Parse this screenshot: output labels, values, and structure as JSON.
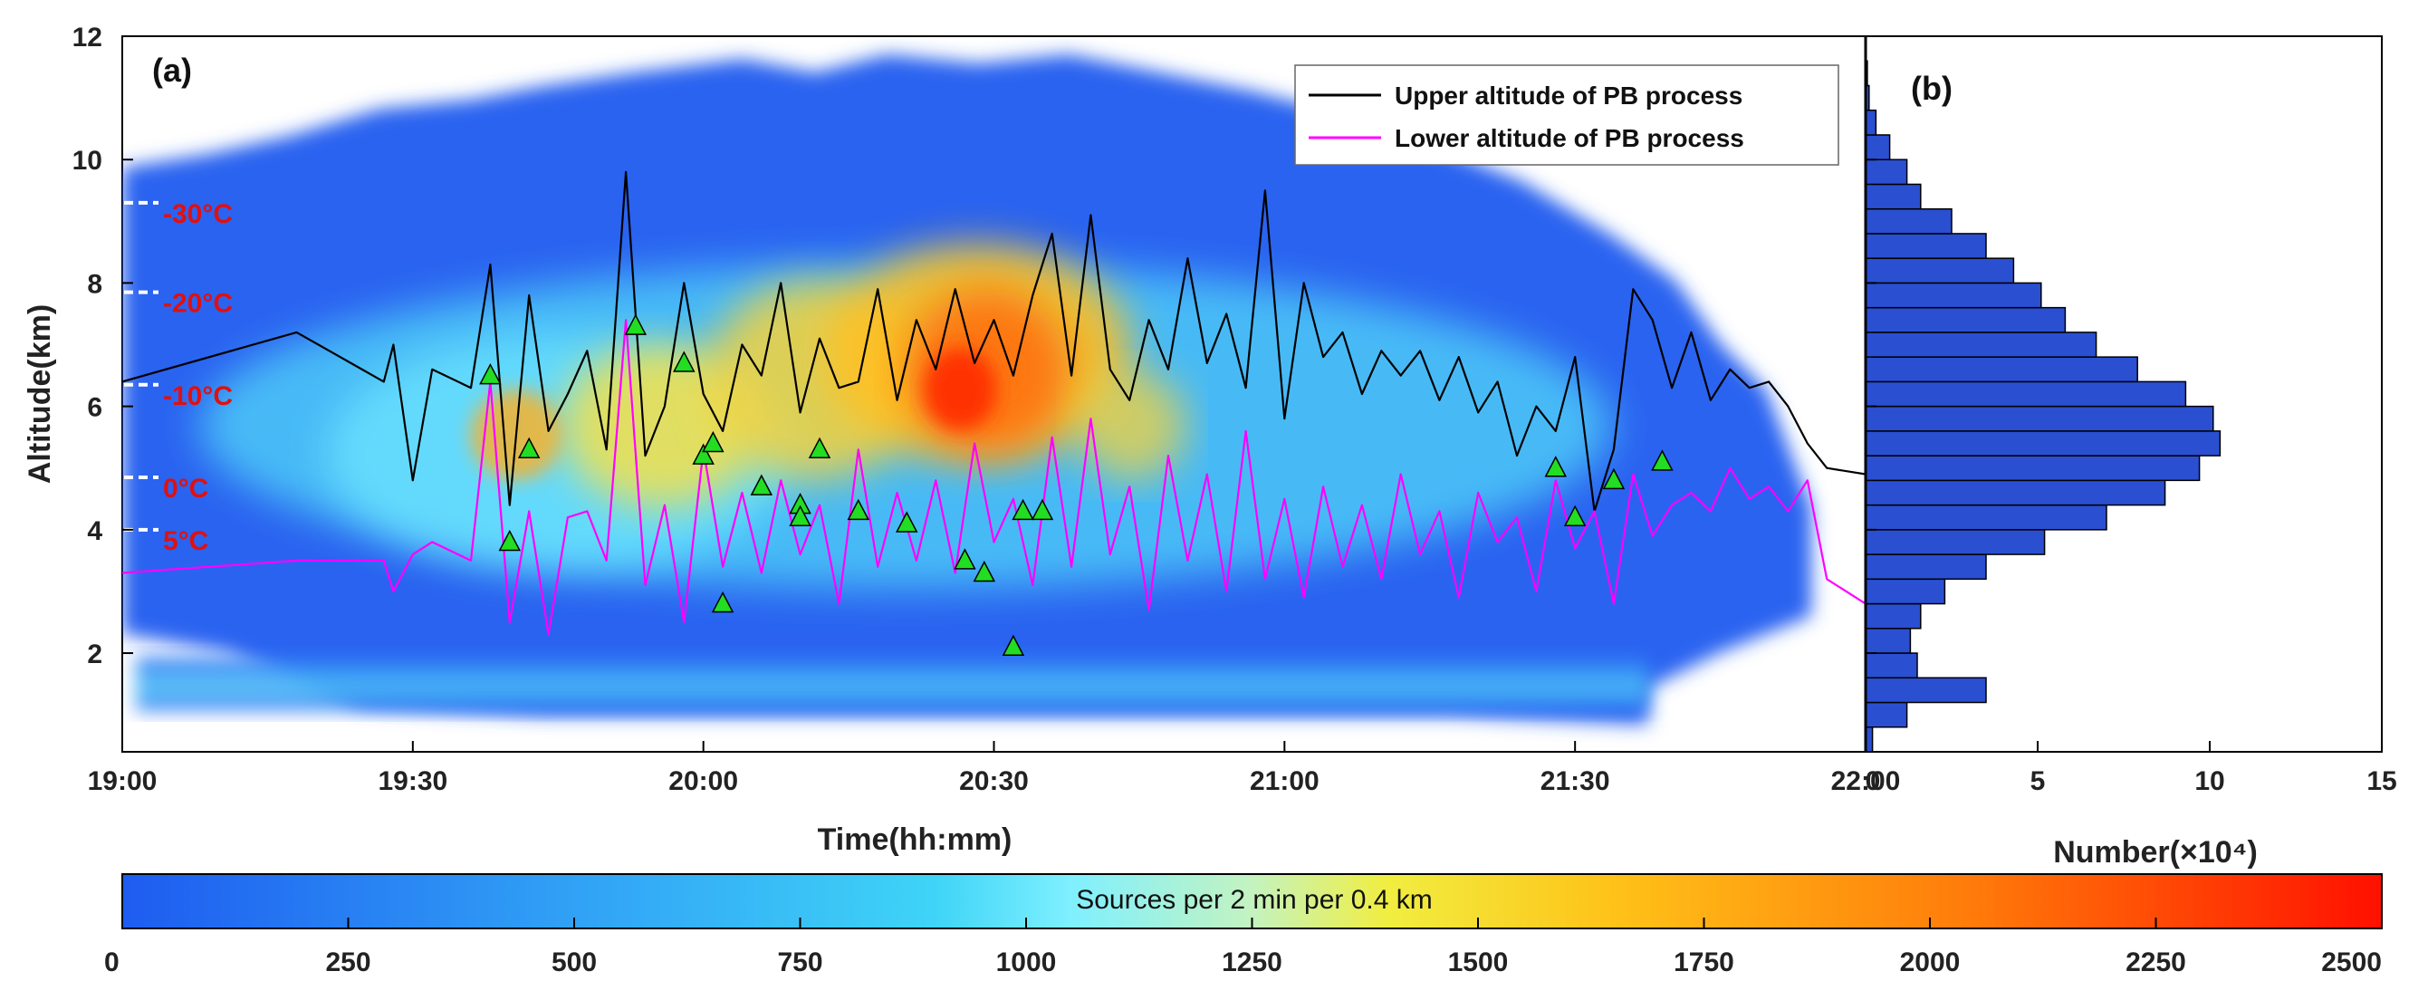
{
  "chart_data": [
    {
      "type": "heatmap",
      "panel_label": "(a)",
      "xlabel": "Time(hh:mm)",
      "ylabel": "Altitude(km)",
      "x_ticks": [
        "19:00",
        "19:30",
        "20:00",
        "20:30",
        "21:00",
        "21:30",
        "22:00"
      ],
      "x_ticks_minutes": [
        0,
        30,
        60,
        90,
        120,
        150,
        180
      ],
      "xlim_minutes": [
        0,
        180
      ],
      "y_ticks": [
        2,
        4,
        6,
        8,
        10,
        12
      ],
      "ylim": [
        0.4,
        12
      ],
      "temperature_levels": [
        {
          "label": "-30°C",
          "altitude": 9.3
        },
        {
          "label": "-20°C",
          "altitude": 7.85
        },
        {
          "label": "-10°C",
          "altitude": 6.35
        },
        {
          "label": "0°C",
          "altitude": 4.85
        },
        {
          "label": "5°C",
          "altitude": 4.0
        }
      ],
      "legend": {
        "position": "top-right"
      },
      "series": [
        {
          "name": "Upper altitude of PB process",
          "color": "#000000",
          "x": [
            0,
            18,
            27,
            28,
            30,
            32,
            36,
            38,
            40,
            42,
            44,
            46,
            48,
            50,
            52,
            54,
            56,
            58,
            60,
            62,
            64,
            66,
            68,
            70,
            72,
            74,
            76,
            78,
            80,
            82,
            84,
            86,
            88,
            90,
            92,
            94,
            96,
            98,
            100,
            102,
            104,
            106,
            108,
            110,
            112,
            114,
            116,
            118,
            120,
            122,
            124,
            126,
            128,
            130,
            132,
            134,
            136,
            138,
            140,
            142,
            144,
            146,
            148,
            150,
            152,
            154,
            156,
            158,
            160,
            162,
            164,
            166,
            168,
            170,
            172,
            174,
            176,
            180
          ],
          "y": [
            6.4,
            7.2,
            6.4,
            7.0,
            4.8,
            6.6,
            6.3,
            8.3,
            4.4,
            7.8,
            5.6,
            6.2,
            6.9,
            5.3,
            9.8,
            5.2,
            6.0,
            8.0,
            6.2,
            5.6,
            7.0,
            6.5,
            8.0,
            5.9,
            7.1,
            6.3,
            6.4,
            7.9,
            6.1,
            7.4,
            6.6,
            7.9,
            6.7,
            7.4,
            6.5,
            7.8,
            8.8,
            6.5,
            9.1,
            6.6,
            6.1,
            7.4,
            6.6,
            8.4,
            6.7,
            7.5,
            6.3,
            9.5,
            5.8,
            8.0,
            6.8,
            7.2,
            6.2,
            6.9,
            6.5,
            6.9,
            6.1,
            6.8,
            5.9,
            6.4,
            5.2,
            6.0,
            5.6,
            6.8,
            4.3,
            5.3,
            7.9,
            7.4,
            6.3,
            7.2,
            6.1,
            6.6,
            6.3,
            6.4,
            6.0,
            5.4,
            5.0,
            4.9
          ]
        },
        {
          "name": "Lower altitude of PB process",
          "color": "#ff00ff",
          "x": [
            0,
            18,
            27,
            28,
            30,
            32,
            36,
            38,
            40,
            42,
            44,
            46,
            48,
            50,
            52,
            54,
            56,
            58,
            60,
            62,
            64,
            66,
            68,
            70,
            72,
            74,
            76,
            78,
            80,
            82,
            84,
            86,
            88,
            90,
            92,
            94,
            96,
            98,
            100,
            102,
            104,
            106,
            108,
            110,
            112,
            114,
            116,
            118,
            120,
            122,
            124,
            126,
            128,
            130,
            132,
            134,
            136,
            138,
            140,
            142,
            144,
            146,
            148,
            150,
            152,
            154,
            156,
            158,
            160,
            162,
            164,
            166,
            168,
            170,
            172,
            174,
            176,
            180
          ],
          "y": [
            3.3,
            3.5,
            3.5,
            3.0,
            3.6,
            3.8,
            3.5,
            6.4,
            2.5,
            4.3,
            2.3,
            4.2,
            4.3,
            3.5,
            7.4,
            3.1,
            4.4,
            2.5,
            5.3,
            3.4,
            4.6,
            3.3,
            4.8,
            3.6,
            4.4,
            2.8,
            5.3,
            3.4,
            4.6,
            3.5,
            4.8,
            3.3,
            5.4,
            3.8,
            4.5,
            3.1,
            5.5,
            3.4,
            5.8,
            3.6,
            4.7,
            2.7,
            5.2,
            3.5,
            4.9,
            3.0,
            5.6,
            3.2,
            4.5,
            2.9,
            4.7,
            3.4,
            4.4,
            3.2,
            4.9,
            3.6,
            4.3,
            2.9,
            4.6,
            3.8,
            4.2,
            3.0,
            4.8,
            3.7,
            4.3,
            2.8,
            4.9,
            3.9,
            4.4,
            4.6,
            4.3,
            5.0,
            4.5,
            4.7,
            4.3,
            4.8,
            3.2,
            2.8
          ]
        }
      ],
      "markers": {
        "shape": "triangle",
        "color": "#22dd22",
        "x": [
          38,
          40,
          42,
          53,
          58,
          60,
          61,
          62,
          66,
          70,
          70,
          72,
          76,
          81,
          87,
          89,
          92,
          93,
          95,
          148,
          150,
          154,
          159
        ],
        "y": [
          6.5,
          3.8,
          5.3,
          7.3,
          6.7,
          5.2,
          5.4,
          2.8,
          4.7,
          4.4,
          4.2,
          5.3,
          4.3,
          4.1,
          3.5,
          3.3,
          2.1,
          4.3,
          4.3,
          5.0,
          4.2,
          4.8,
          5.1
        ]
      },
      "density_colorbar": {
        "label": "Sources per 2 min per 0.4 km",
        "ticks": [
          0,
          250,
          500,
          750,
          1000,
          1250,
          1500,
          1750,
          2000,
          2250,
          2500
        ],
        "range": [
          0,
          2500
        ]
      }
    },
    {
      "type": "bar",
      "orientation": "horizontal",
      "panel_label": "(b)",
      "xlabel": "Number(×10⁴)",
      "x_ticks": [
        0,
        5,
        10,
        15
      ],
      "xlim": [
        0,
        15
      ],
      "ylim": [
        0.4,
        12
      ],
      "bin_width_km": 0.4,
      "bin_centers": [
        0.6,
        1.0,
        1.4,
        1.8,
        2.2,
        2.6,
        3.0,
        3.4,
        3.8,
        4.2,
        4.6,
        5.0,
        5.4,
        5.8,
        6.2,
        6.6,
        7.0,
        7.4,
        7.8,
        8.2,
        8.6,
        9.0,
        9.4,
        9.8,
        10.2,
        10.6,
        11.0,
        11.4,
        11.8
      ],
      "values": [
        0.2,
        1.2,
        3.5,
        1.5,
        1.3,
        1.6,
        2.3,
        3.5,
        5.2,
        7.0,
        8.7,
        9.7,
        10.3,
        10.1,
        9.3,
        7.9,
        6.7,
        5.8,
        5.1,
        4.3,
        3.5,
        2.5,
        1.6,
        1.2,
        0.7,
        0.3,
        0.1,
        0.05,
        0.02
      ],
      "color": "#2b4fd1"
    }
  ]
}
